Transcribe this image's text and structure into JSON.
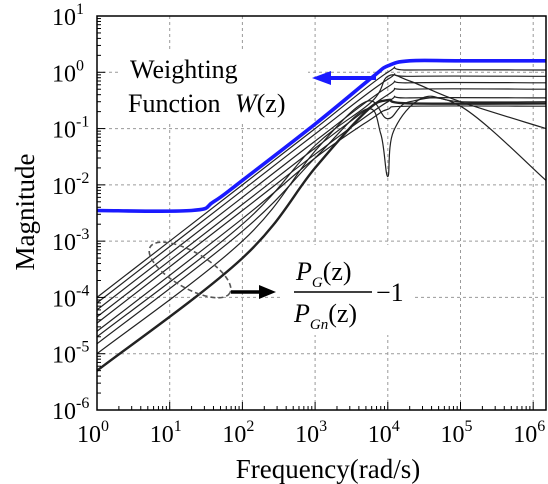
{
  "chart_data": {
    "type": "line",
    "xlabel": "Frequency(rad/s)",
    "ylabel": "Magnitude",
    "xscale": "log",
    "yscale": "log",
    "xlim": [
      1,
      1500000
    ],
    "ylim": [
      1e-06,
      10
    ],
    "grid": true,
    "x_ticks": [
      {
        "base": "10",
        "exp": "0",
        "value": 1
      },
      {
        "base": "10",
        "exp": "1",
        "value": 10
      },
      {
        "base": "10",
        "exp": "2",
        "value": 100
      },
      {
        "base": "10",
        "exp": "3",
        "value": 1000
      },
      {
        "base": "10",
        "exp": "4",
        "value": 10000
      },
      {
        "base": "10",
        "exp": "5",
        "value": 100000
      },
      {
        "base": "10",
        "exp": "6",
        "value": 1000000
      }
    ],
    "y_ticks": [
      {
        "base": "10",
        "exp": "1",
        "value": 10
      },
      {
        "base": "10",
        "exp": "0",
        "value": 1
      },
      {
        "base": "10",
        "exp": "-1",
        "value": 0.1
      },
      {
        "base": "10",
        "exp": "-2",
        "value": 0.01
      },
      {
        "base": "10",
        "exp": "-3",
        "value": 0.001
      },
      {
        "base": "10",
        "exp": "-4",
        "value": 0.0001
      },
      {
        "base": "10",
        "exp": "-5",
        "value": 1e-05
      },
      {
        "base": "10",
        "exp": "-6",
        "value": 1e-06
      }
    ],
    "weighting_function": {
      "color": "#1a1aff",
      "points": [
        [
          1,
          0.0035
        ],
        [
          20,
          0.0035
        ],
        [
          40,
          0.005
        ],
        [
          100,
          0.012
        ],
        [
          1000,
          0.12
        ],
        [
          6000,
          0.8
        ],
        [
          10000,
          1.3
        ],
        [
          20000,
          1.6
        ],
        [
          100000,
          1.6
        ],
        [
          1500000,
          1.6
        ]
      ]
    },
    "series": [
      {
        "points": [
          [
            1,
            0.0001
          ],
          [
            100,
            0.01
          ],
          [
            1000,
            0.1
          ],
          [
            10000,
            1.0
          ],
          [
            20000,
            1.1
          ],
          [
            1500000,
            1.1
          ]
        ]
      },
      {
        "points": [
          [
            1,
            8e-05
          ],
          [
            100,
            0.008
          ],
          [
            1000,
            0.08
          ],
          [
            10000,
            0.75
          ],
          [
            20000,
            0.85
          ],
          [
            1500000,
            0.85
          ]
        ]
      },
      {
        "points": [
          [
            1,
            6e-05
          ],
          [
            100,
            0.006
          ],
          [
            1000,
            0.06
          ],
          [
            10000,
            0.55
          ],
          [
            20000,
            0.65
          ],
          [
            1500000,
            0.65
          ]
        ]
      },
      {
        "points": [
          [
            1,
            4.5e-05
          ],
          [
            100,
            0.0045
          ],
          [
            1000,
            0.045
          ],
          [
            10000,
            0.4
          ],
          [
            20000,
            0.5
          ],
          [
            1500000,
            0.5
          ]
        ]
      },
      {
        "points": [
          [
            1,
            3.5e-05
          ],
          [
            100,
            0.0035
          ],
          [
            1000,
            0.035
          ],
          [
            10000,
            0.3
          ],
          [
            20000,
            0.35
          ],
          [
            1500000,
            0.35
          ]
        ]
      },
      {
        "points": [
          [
            1,
            2.5e-05
          ],
          [
            100,
            0.0025
          ],
          [
            1000,
            0.03
          ],
          [
            6000,
            0.15
          ],
          [
            10000,
            0.22
          ],
          [
            20000,
            0.25
          ],
          [
            1500000,
            0.25
          ]
        ]
      },
      {
        "points": [
          [
            1,
            2e-05
          ],
          [
            100,
            0.002
          ],
          [
            1000,
            0.05
          ],
          [
            6000,
            0.3
          ],
          [
            10000,
            0.85
          ],
          [
            20000,
            0.7
          ],
          [
            100000,
            0.3
          ],
          [
            1500000,
            0.1
          ]
        ]
      },
      {
        "points": [
          [
            1,
            1.5e-05
          ],
          [
            100,
            0.0015
          ],
          [
            1000,
            0.03
          ],
          [
            5000,
            0.22
          ],
          [
            8000,
            0.08
          ],
          [
            10000,
            0.014
          ],
          [
            12000,
            0.09
          ],
          [
            30000,
            0.35
          ],
          [
            100000,
            0.3
          ],
          [
            1500000,
            0.3
          ]
        ]
      },
      {
        "points": [
          [
            1,
            1e-05
          ],
          [
            100,
            0.001
          ],
          [
            1000,
            0.04
          ],
          [
            5000,
            0.3
          ],
          [
            10000,
            0.15
          ],
          [
            20000,
            0.3
          ],
          [
            100000,
            0.25
          ],
          [
            1500000,
            0.012
          ]
        ]
      },
      {
        "points": [
          [
            1,
            5e-06
          ],
          [
            100,
            0.0005
          ],
          [
            1000,
            0.02
          ],
          [
            5000,
            0.2
          ],
          [
            10000,
            0.32
          ],
          [
            20000,
            0.28
          ],
          [
            1500000,
            0.28
          ]
        ],
        "bold": true
      }
    ],
    "annotations": {
      "weighting_label_line1": "Weighting",
      "weighting_label_line2": "Function",
      "weighting_symbol": "W",
      "weighting_arg": "(z)",
      "ratio_num_P": "P",
      "ratio_num_sub": "G",
      "ratio_num_arg": "(z)",
      "ratio_den_P": "P",
      "ratio_den_sub": "Gn",
      "ratio_den_arg": "(z)",
      "ratio_minus": "−1"
    }
  }
}
